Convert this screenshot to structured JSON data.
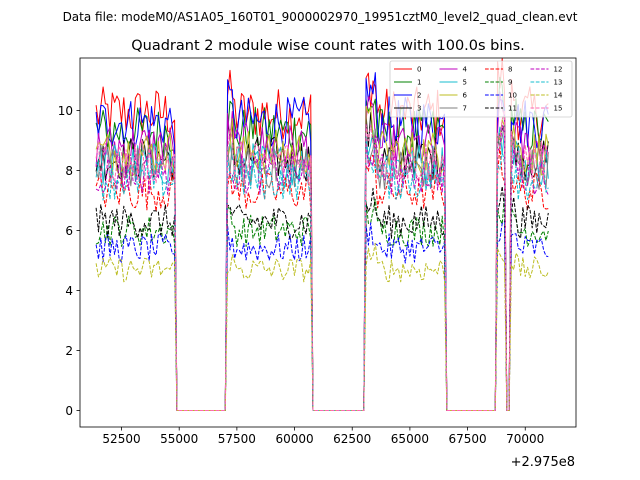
{
  "suptitle": "Data file: modeM0/AS1A05_160T01_9000002970_19951cztM0_level2_quad_clean.evt",
  "chart_data": {
    "type": "line",
    "title": "Quadrant 2 module wise count rates with 100.0s bins.",
    "xlabel": "",
    "ylabel": "",
    "x_offset_label": "+2.975e8",
    "xlim": [
      50700,
      72200
    ],
    "ylim": [
      -0.55,
      11.75
    ],
    "xticks": [
      52500,
      55000,
      57500,
      60000,
      62500,
      65000,
      67500,
      70000
    ],
    "xtick_labels": [
      "52500",
      "55000",
      "57500",
      "60000",
      "62500",
      "65000",
      "67500",
      "70000"
    ],
    "yticks": [
      0,
      2,
      4,
      6,
      8,
      10
    ],
    "ytick_labels": [
      "0",
      "2",
      "4",
      "6",
      "8",
      "10"
    ],
    "x_start": 51400,
    "x_step": 100,
    "legend_position": "top-right",
    "segments": [
      {
        "start": 51400,
        "end": 54800,
        "state": "on"
      },
      {
        "start": 54900,
        "end": 57000,
        "state": "off"
      },
      {
        "start": 57100,
        "end": 60700,
        "state": "on"
      },
      {
        "start": 60800,
        "end": 63000,
        "state": "off"
      },
      {
        "start": 63100,
        "end": 66500,
        "state": "on"
      },
      {
        "start": 66600,
        "end": 68700,
        "state": "off"
      },
      {
        "start": 68800,
        "end": 69100,
        "state": "on"
      },
      {
        "start": 69200,
        "end": 69300,
        "state": "off"
      },
      {
        "start": 69400,
        "end": 71000,
        "state": "on"
      }
    ],
    "series": [
      {
        "name": "0",
        "color": "#ff0000",
        "dash": "solid",
        "mean": 9.9
      },
      {
        "name": "1",
        "color": "#008000",
        "dash": "solid",
        "mean": 9.3
      },
      {
        "name": "2",
        "color": "#0000ff",
        "dash": "solid",
        "mean": 9.6
      },
      {
        "name": "3",
        "color": "#000000",
        "dash": "solid",
        "mean": 8.4
      },
      {
        "name": "4",
        "color": "#bf00bf",
        "dash": "solid",
        "mean": 8.8
      },
      {
        "name": "5",
        "color": "#17becf",
        "dash": "solid",
        "mean": 8.2
      },
      {
        "name": "6",
        "color": "#bcbd22",
        "dash": "solid",
        "mean": 8.6
      },
      {
        "name": "7",
        "color": "#7f7f7f",
        "dash": "solid",
        "mean": 8.1
      },
      {
        "name": "8",
        "color": "#ff0000",
        "dash": "dashed",
        "mean": 7.3
      },
      {
        "name": "9",
        "color": "#008000",
        "dash": "dashed",
        "mean": 6.0
      },
      {
        "name": "10",
        "color": "#0000ff",
        "dash": "dashed",
        "mean": 5.4
      },
      {
        "name": "11",
        "color": "#000000",
        "dash": "dashed",
        "mean": 6.3
      },
      {
        "name": "12",
        "color": "#bf00bf",
        "dash": "dashed",
        "mean": 7.9
      },
      {
        "name": "13",
        "color": "#17becf",
        "dash": "dashed",
        "mean": 7.7
      },
      {
        "name": "14",
        "color": "#bcbd22",
        "dash": "dashed",
        "mean": 4.7
      },
      {
        "name": "15",
        "color": "#ff69b4",
        "dash": "dashed",
        "mean": 8.3
      }
    ]
  }
}
